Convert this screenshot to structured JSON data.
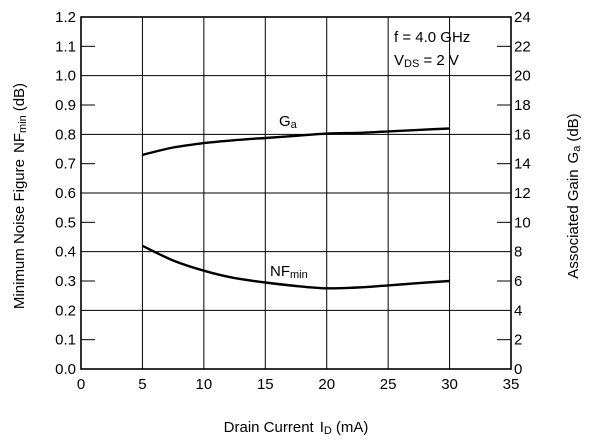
{
  "chart_data": {
    "type": "line",
    "x_axis": {
      "title": "Drain Current",
      "symbol": "I",
      "symbol_sub": "D",
      "unit": "(mA)",
      "range": [
        0,
        35
      ],
      "ticks": [
        0,
        5,
        10,
        15,
        20,
        25,
        30,
        35
      ]
    },
    "y_left": {
      "title": "Minimum Noise Figure",
      "symbol": "NF",
      "symbol_sub": "min",
      "unit": "(dB)",
      "range": [
        0,
        1.2
      ],
      "ticks": [
        0.0,
        0.1,
        0.2,
        0.3,
        0.4,
        0.5,
        0.6,
        0.7,
        0.8,
        0.9,
        1.0,
        1.1,
        1.2
      ],
      "tick_labels": [
        "0.0",
        "0.1",
        "0.2",
        "0.3",
        "0.4",
        "0.5",
        "0.6",
        "0.7",
        "0.8",
        "0.9",
        "1.0",
        "1.1",
        "1.2"
      ]
    },
    "y_right": {
      "title": "Associated Gain",
      "symbol": "G",
      "symbol_sub": "a",
      "unit": "(dB)",
      "range": [
        0,
        24
      ],
      "ticks": [
        0,
        2,
        4,
        6,
        8,
        10,
        12,
        14,
        16,
        18,
        20,
        22,
        24
      ]
    },
    "grid": true,
    "conditions": [
      {
        "text": "f = 4.0 GHz"
      },
      {
        "prefix": "V",
        "sub": "DS",
        "suffix": " = 2 V"
      }
    ],
    "series": [
      {
        "name": "G",
        "name_sub": "a",
        "axis": "right",
        "points": [
          {
            "x": 5,
            "y": 14.6
          },
          {
            "x": 7.5,
            "y": 15.1
          },
          {
            "x": 10,
            "y": 15.4
          },
          {
            "x": 12.5,
            "y": 15.6
          },
          {
            "x": 15,
            "y": 15.75
          },
          {
            "x": 17.5,
            "y": 15.9
          },
          {
            "x": 20,
            "y": 16.05
          },
          {
            "x": 22.5,
            "y": 16.1
          },
          {
            "x": 25,
            "y": 16.2
          },
          {
            "x": 27.5,
            "y": 16.3
          },
          {
            "x": 30,
            "y": 16.4
          }
        ]
      },
      {
        "name": "NF",
        "name_sub": "min",
        "axis": "left",
        "points": [
          {
            "x": 5,
            "y": 0.42
          },
          {
            "x": 7.5,
            "y": 0.37
          },
          {
            "x": 10,
            "y": 0.335
          },
          {
            "x": 12.5,
            "y": 0.31
          },
          {
            "x": 15,
            "y": 0.295
          },
          {
            "x": 17.5,
            "y": 0.283
          },
          {
            "x": 20,
            "y": 0.275
          },
          {
            "x": 22.5,
            "y": 0.278
          },
          {
            "x": 25,
            "y": 0.285
          },
          {
            "x": 27.5,
            "y": 0.293
          },
          {
            "x": 30,
            "y": 0.3
          }
        ]
      }
    ]
  }
}
